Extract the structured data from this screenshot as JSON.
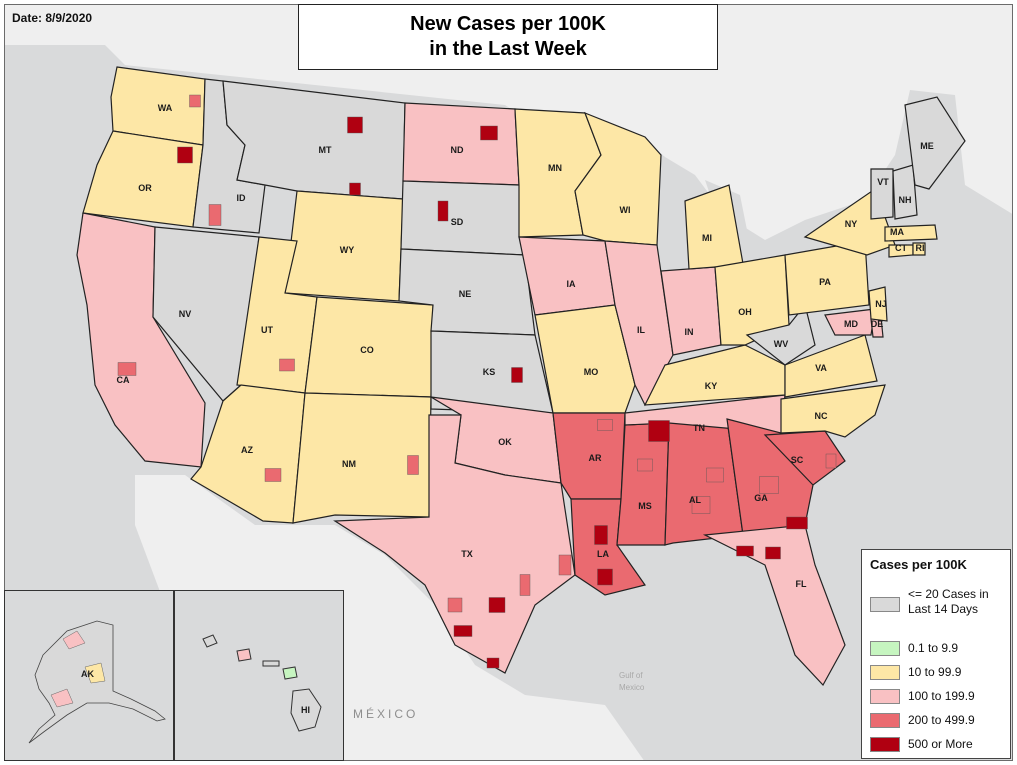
{
  "date_label": "Date: 8/9/2020",
  "title_line1": "New Cases per 100K",
  "title_line2": "in the Last Week",
  "colors": {
    "none": "#d9d9d9",
    "low": "#c6f5c0",
    "mid": "#fde7a6",
    "high": "#f9c1c3",
    "veryhigh": "#ea6a70",
    "extreme": "#b00011",
    "land": "#efefef",
    "water": "#d9dadb"
  },
  "legend": {
    "title": "Cases per 100K",
    "items": [
      {
        "label": "<= 20 Cases in Last 14 Days",
        "color": "#d9d9d9"
      },
      {
        "label": "0.1 to 9.9",
        "color": "#c6f5c0"
      },
      {
        "label": "10 to 99.9",
        "color": "#fde7a6"
      },
      {
        "label": "100 to 199.9",
        "color": "#f9c1c3"
      },
      {
        "label": "200 to 499.9",
        "color": "#ea6a70"
      },
      {
        "label": "500 or More",
        "color": "#b00011"
      }
    ]
  },
  "state_labels": [
    "WA",
    "OR",
    "CA",
    "ID",
    "NV",
    "MT",
    "WY",
    "UT",
    "AZ",
    "CO",
    "NM",
    "ND",
    "SD",
    "NE",
    "KS",
    "OK",
    "TX",
    "MN",
    "IA",
    "MO",
    "AR",
    "LA",
    "WI",
    "IL",
    "MS",
    "AL",
    "TN",
    "KY",
    "IN",
    "MI",
    "OH",
    "GA",
    "FL",
    "SC",
    "NC",
    "VA",
    "WV",
    "PA",
    "NY",
    "MD",
    "DE",
    "NJ",
    "CT",
    "RI",
    "MA",
    "VT",
    "NH",
    "ME",
    "AK",
    "HI"
  ],
  "place_labels": {
    "mexico": "MÉXICO",
    "gulf_line1": "Gulf of",
    "gulf_line2": "Mexico"
  }
}
